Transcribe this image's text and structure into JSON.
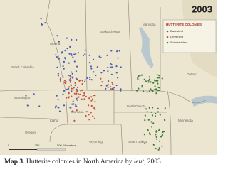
{
  "map": {
    "year": "2003",
    "legend": {
      "title": "HUTTERITE COLONIES",
      "entries": [
        {
          "label": "Dariusleut",
          "color": "#4a5fb4"
        },
        {
          "label": "Lehrerleut",
          "color": "#c4553c"
        },
        {
          "label": "Schmiedeleut",
          "color": "#3f7d3c"
        }
      ]
    },
    "regions": [
      "Alberta",
      "Saskatchewan",
      "Manitoba",
      "British Columbia",
      "Ontario",
      "Washington",
      "Montana",
      "North Dakota",
      "Minnesota",
      "Idaho",
      "Oregon",
      "Wyoming",
      "South Dakota"
    ],
    "scale": [
      "0",
      "250",
      "500 Kilometers"
    ]
  },
  "caption": {
    "label": "Map 3.",
    "text_before": "Hutterite colonies in North America by ",
    "italic": "leut",
    "text_after": ", 2003."
  }
}
